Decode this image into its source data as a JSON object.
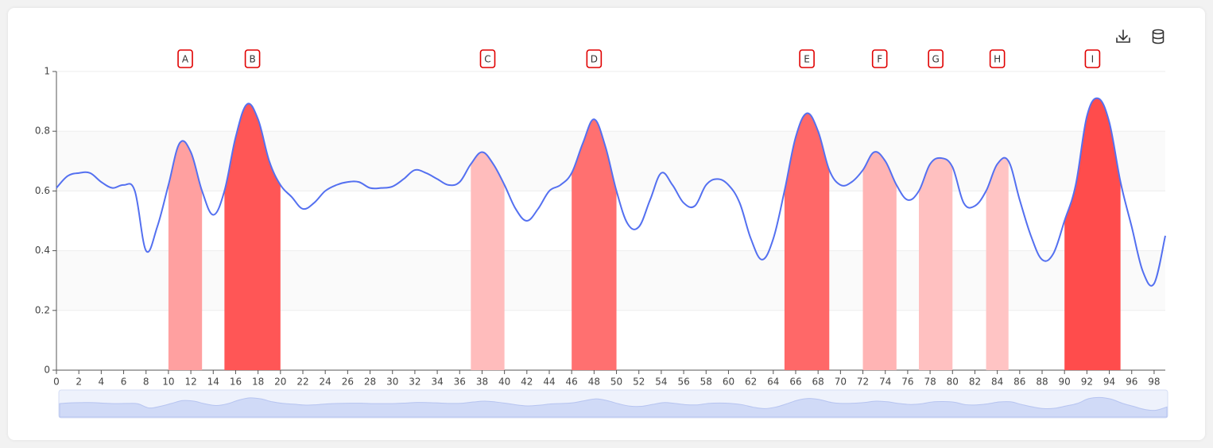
{
  "chart_data": {
    "type": "line",
    "color": "#5470f0",
    "x": [
      0,
      1,
      2,
      3,
      4,
      5,
      6,
      7,
      8,
      9,
      10,
      11,
      12,
      13,
      14,
      15,
      16,
      17,
      18,
      19,
      20,
      21,
      22,
      23,
      24,
      25,
      26,
      27,
      28,
      29,
      30,
      31,
      32,
      33,
      34,
      35,
      36,
      37,
      38,
      39,
      40,
      41,
      42,
      43,
      44,
      45,
      46,
      47,
      48,
      49,
      50,
      51,
      52,
      53,
      54,
      55,
      56,
      57,
      58,
      59,
      60,
      61,
      62,
      63,
      64,
      65,
      66,
      67,
      68,
      69,
      70,
      71,
      72,
      73,
      74,
      75,
      76,
      77,
      78,
      79,
      80,
      81,
      82,
      83,
      84,
      85,
      86,
      87,
      88,
      89,
      90,
      91,
      92,
      93,
      94,
      95,
      96,
      97,
      98,
      99
    ],
    "series": [
      {
        "values": [
          0.61,
          0.65,
          0.66,
          0.66,
          0.63,
          0.61,
          0.62,
          0.6,
          0.4,
          0.48,
          0.62,
          0.76,
          0.73,
          0.6,
          0.52,
          0.6,
          0.78,
          0.89,
          0.84,
          0.7,
          0.62,
          0.58,
          0.54,
          0.56,
          0.6,
          0.62,
          0.63,
          0.63,
          0.61,
          0.61,
          0.615,
          0.64,
          0.67,
          0.66,
          0.64,
          0.62,
          0.63,
          0.69,
          0.73,
          0.69,
          0.62,
          0.54,
          0.5,
          0.54,
          0.6,
          0.62,
          0.66,
          0.76,
          0.84,
          0.75,
          0.6,
          0.49,
          0.48,
          0.57,
          0.66,
          0.62,
          0.56,
          0.55,
          0.62,
          0.64,
          0.62,
          0.56,
          0.44,
          0.37,
          0.44,
          0.6,
          0.78,
          0.86,
          0.8,
          0.67,
          0.62,
          0.63,
          0.67,
          0.73,
          0.7,
          0.62,
          0.57,
          0.6,
          0.69,
          0.71,
          0.68,
          0.56,
          0.55,
          0.6,
          0.69,
          0.7,
          0.57,
          0.45,
          0.37,
          0.39,
          0.5,
          0.62,
          0.85,
          0.91,
          0.83,
          0.63,
          0.48,
          0.33,
          0.29,
          0.45
        ]
      }
    ],
    "regions": [
      {
        "label": "A",
        "start": 10,
        "end": 13,
        "color": "#ffa0a0"
      },
      {
        "label": "B",
        "start": 15,
        "end": 20,
        "color": "#ff5656"
      },
      {
        "label": "C",
        "start": 37,
        "end": 40,
        "color": "#ffbcbc"
      },
      {
        "label": "D",
        "start": 46,
        "end": 50,
        "color": "#ff7070"
      },
      {
        "label": "E",
        "start": 65,
        "end": 69,
        "color": "#ff6868"
      },
      {
        "label": "F",
        "start": 72,
        "end": 75,
        "color": "#ffb4b4"
      },
      {
        "label": "G",
        "start": 77,
        "end": 80,
        "color": "#ffc0c0"
      },
      {
        "label": "H",
        "start": 83,
        "end": 85,
        "color": "#ffc4c4"
      },
      {
        "label": "I",
        "start": 90,
        "end": 95,
        "color": "#ff4c4c"
      }
    ],
    "xlim": [
      0,
      99
    ],
    "ylim": [
      0,
      1
    ],
    "xticks": [
      0,
      2,
      4,
      6,
      8,
      10,
      12,
      14,
      16,
      18,
      20,
      22,
      24,
      26,
      28,
      30,
      32,
      34,
      36,
      38,
      40,
      42,
      44,
      46,
      48,
      50,
      52,
      54,
      56,
      58,
      60,
      62,
      64,
      66,
      68,
      70,
      72,
      74,
      76,
      78,
      80,
      82,
      84,
      86,
      88,
      90,
      92,
      94,
      96,
      98
    ],
    "yticks": [
      0,
      0.2,
      0.4,
      0.6,
      0.8,
      1
    ]
  }
}
